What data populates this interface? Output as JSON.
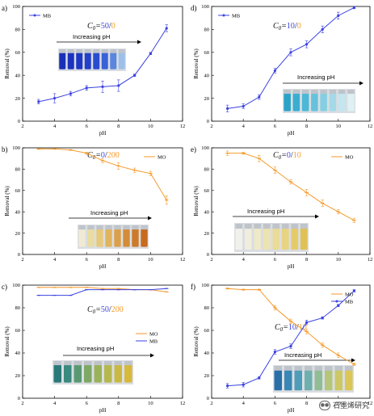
{
  "chart_data": [
    {
      "panel": "a)",
      "type": "line",
      "xlabel": "pH",
      "ylabel": "Removal (%)",
      "xlim": [
        2,
        12
      ],
      "ylim": [
        0,
        100
      ],
      "xticks": [
        2,
        4,
        6,
        8,
        10,
        12
      ],
      "yticks": [
        0,
        20,
        40,
        60,
        80,
        100
      ],
      "c0_parts": [
        "50",
        "/",
        "0"
      ],
      "inset_label": "Increasing pH",
      "vial_colors": [
        "#1a2fb8",
        "#1c33bf",
        "#1e37c4",
        "#2240c9",
        "#2a4ccf",
        "#3a62d6",
        "#5a86de",
        "#9cc0ea"
      ],
      "legend_pos": "top-left",
      "series": [
        {
          "name": "MB",
          "color": "#3b43e0",
          "marker": "star",
          "x": [
            3,
            4,
            5,
            6,
            7,
            8,
            9,
            10,
            11
          ],
          "y": [
            17,
            20,
            24,
            29,
            30,
            31,
            40,
            59,
            81
          ],
          "err": [
            2,
            4,
            2,
            2,
            5,
            5,
            1,
            1,
            3
          ]
        }
      ]
    },
    {
      "panel": "b)",
      "type": "line",
      "xlabel": "pH",
      "ylabel": "Removal (%)",
      "xlim": [
        2,
        12
      ],
      "ylim": [
        0,
        100
      ],
      "xticks": [
        2,
        4,
        6,
        8,
        10,
        12
      ],
      "yticks": [
        0,
        20,
        40,
        60,
        80,
        100
      ],
      "c0_parts": [
        "0",
        "/",
        "200"
      ],
      "inset_label": "Increasing pH",
      "vial_colors": [
        "#f0e9d4",
        "#eadc9f",
        "#e8c97a",
        "#e1b45c",
        "#daa04a",
        "#d48c38",
        "#cc7a2a",
        "#c76a1e"
      ],
      "legend_pos": "top-right",
      "series": [
        {
          "name": "MO",
          "color": "#f59a2a",
          "marker": "dash",
          "x": [
            3,
            4,
            5,
            6,
            7,
            8,
            9,
            10,
            11
          ],
          "y": [
            99,
            99,
            98,
            95,
            88,
            83,
            79,
            76,
            51
          ],
          "err": [
            0.5,
            0.5,
            0.5,
            1,
            2,
            3,
            2,
            2,
            4
          ]
        }
      ]
    },
    {
      "panel": "c)",
      "type": "line",
      "xlabel": "pH",
      "ylabel": "Removal (%)",
      "xlim": [
        2,
        12
      ],
      "ylim": [
        0,
        100
      ],
      "xticks": [
        2,
        4,
        6,
        8,
        10,
        12
      ],
      "yticks": [
        0,
        20,
        40,
        60,
        80,
        100
      ],
      "c0_parts": [
        "50",
        "/",
        "200"
      ],
      "inset_label": "Increasing pH",
      "vial_colors": [
        "#2a7a7a",
        "#3a8a7e",
        "#5a9a72",
        "#7ea865",
        "#9ab25a",
        "#b5b84e",
        "#c9b944",
        "#d7b93c"
      ],
      "legend_pos": "center-right",
      "series": [
        {
          "name": "MO",
          "color": "#f59a2a",
          "marker": "dash",
          "x": [
            3,
            4,
            5,
            6,
            7,
            8,
            9,
            10,
            11
          ],
          "y": [
            98,
            98,
            98,
            98,
            97,
            97,
            96,
            96,
            94
          ],
          "err": [
            0,
            0,
            0,
            0,
            0,
            0,
            0,
            0,
            0
          ]
        },
        {
          "name": "MB",
          "color": "#3b43e0",
          "marker": "dash",
          "x": [
            3,
            4,
            5,
            6,
            7,
            8,
            9,
            10,
            11
          ],
          "y": [
            91,
            91,
            91,
            96,
            96,
            96,
            96,
            96,
            97
          ],
          "err": [
            0,
            0,
            0,
            0,
            0,
            0,
            0,
            0,
            0
          ]
        }
      ]
    },
    {
      "panel": "d)",
      "type": "line",
      "xlabel": "pH",
      "ylabel": "Removal (%)",
      "xlim": [
        2,
        12
      ],
      "ylim": [
        0,
        100
      ],
      "xticks": [
        2,
        4,
        6,
        8,
        10,
        12
      ],
      "yticks": [
        0,
        20,
        40,
        60,
        80,
        100
      ],
      "c0_parts": [
        "10",
        "/",
        "0"
      ],
      "inset_label": "Increasing pH",
      "vial_colors": [
        "#2aa3c9",
        "#3aaed0",
        "#4ab8d6",
        "#66c2dc",
        "#86cfe3",
        "#a4dae8",
        "#c3e6ef",
        "#dff1f5"
      ],
      "legend_pos": "top-left",
      "series": [
        {
          "name": "MB",
          "color": "#3b43e0",
          "marker": "star",
          "x": [
            3,
            4,
            5,
            6,
            7,
            8,
            9,
            10,
            11
          ],
          "y": [
            11,
            13,
            21,
            44,
            60,
            67,
            80,
            92,
            99
          ],
          "err": [
            3,
            2,
            2,
            2,
            3,
            3,
            3,
            3,
            1
          ]
        }
      ]
    },
    {
      "panel": "e)",
      "type": "line",
      "xlabel": "pH",
      "ylabel": "Removal (%)",
      "xlim": [
        2,
        12
      ],
      "ylim": [
        0,
        100
      ],
      "xticks": [
        2,
        4,
        6,
        8,
        10,
        12
      ],
      "yticks": [
        0,
        20,
        40,
        60,
        80,
        100
      ],
      "c0_parts": [
        "0",
        "/",
        "10"
      ],
      "inset_label": "Increasing pH",
      "vial_colors": [
        "#f2f0ea",
        "#f0eddc",
        "#eee9c8",
        "#ece3b0",
        "#eadc98",
        "#e8d480",
        "#e4cb68",
        "#e0c154"
      ],
      "legend_pos": "top-right",
      "series": [
        {
          "name": "MO",
          "color": "#f59a2a",
          "marker": "dash",
          "x": [
            3,
            4,
            5,
            6,
            7,
            8,
            9,
            10,
            11
          ],
          "y": [
            95,
            95,
            90,
            79,
            68,
            58,
            48,
            40,
            32
          ],
          "err": [
            2,
            1,
            3,
            3,
            2,
            3,
            3,
            2,
            2
          ]
        }
      ]
    },
    {
      "panel": "f)",
      "type": "line",
      "xlabel": "pH",
      "ylabel": "Removal (%)",
      "xlim": [
        2,
        12
      ],
      "ylim": [
        0,
        100
      ],
      "xticks": [
        2,
        4,
        6,
        8,
        10,
        12
      ],
      "yticks": [
        0,
        20,
        40,
        60,
        80,
        100
      ],
      "c0_parts": [
        "10",
        "/",
        "10"
      ],
      "inset_label": "Increasing pH",
      "vial_colors": [
        "#2a6fa8",
        "#3a86b4",
        "#4e9cb8",
        "#6eb0ae",
        "#90bd94",
        "#b3c67a",
        "#ccc865",
        "#dcc655"
      ],
      "legend_pos": "top-right",
      "series": [
        {
          "name": "MO",
          "color": "#f59a2a",
          "marker": "dash",
          "x": [
            3,
            4,
            5,
            6,
            7,
            8,
            9,
            10,
            11
          ],
          "y": [
            97,
            96,
            96,
            80,
            68,
            59,
            47,
            38,
            30
          ],
          "err": [
            0.5,
            0.5,
            0.5,
            2,
            2,
            2,
            2,
            2,
            1
          ]
        },
        {
          "name": "MB",
          "color": "#3b43e0",
          "marker": "star",
          "x": [
            3,
            4,
            5,
            6,
            7,
            8,
            9,
            10,
            11
          ],
          "y": [
            11,
            12,
            18,
            41,
            46,
            67,
            71,
            82,
            95
          ],
          "err": [
            2,
            2,
            1,
            2,
            2,
            2,
            1,
            1,
            1
          ]
        }
      ]
    }
  ],
  "colors": {
    "mb": "#3b43e0",
    "mo": "#f59a2a",
    "c0_label": "#111111"
  },
  "watermark": {
    "text": "石墨烯研究",
    "icon": "wechat-icon"
  }
}
